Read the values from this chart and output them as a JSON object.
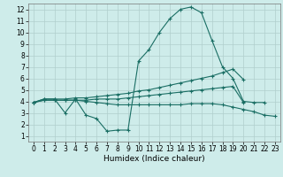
{
  "bg_color": "#ceecea",
  "grid_color": "#b0cfcd",
  "line_color": "#1a6e64",
  "xlabel": "Humidex (Indice chaleur)",
  "xlim_min": -0.5,
  "xlim_max": 23.5,
  "ylim_min": 0.5,
  "ylim_max": 12.5,
  "xticks": [
    0,
    1,
    2,
    3,
    4,
    5,
    6,
    7,
    8,
    9,
    10,
    11,
    12,
    13,
    14,
    15,
    16,
    17,
    18,
    19,
    20,
    21,
    22,
    23
  ],
  "yticks": [
    1,
    2,
    3,
    4,
    5,
    6,
    7,
    8,
    9,
    10,
    11,
    12
  ],
  "line1_x": [
    0,
    1,
    2,
    3,
    4,
    5,
    6,
    7,
    8,
    9,
    10,
    11,
    12,
    13,
    14,
    15,
    16,
    17,
    18,
    19,
    20,
    21,
    22
  ],
  "line1_y": [
    3.9,
    4.2,
    4.2,
    3.0,
    4.2,
    2.8,
    2.5,
    1.4,
    1.5,
    1.5,
    7.5,
    8.5,
    10.0,
    11.2,
    12.0,
    12.2,
    11.7,
    9.3,
    7.0,
    6.0,
    4.0,
    3.9,
    3.9
  ],
  "line2_x": [
    0,
    1,
    2,
    3,
    4,
    5,
    6,
    7,
    8,
    9,
    10,
    11,
    12,
    13,
    14,
    15,
    16,
    17,
    18,
    19,
    20
  ],
  "line2_y": [
    3.9,
    4.2,
    4.2,
    4.2,
    4.3,
    4.3,
    4.4,
    4.5,
    4.6,
    4.7,
    4.9,
    5.0,
    5.2,
    5.4,
    5.6,
    5.8,
    6.0,
    6.2,
    6.5,
    6.8,
    5.9
  ],
  "line3_x": [
    0,
    1,
    2,
    3,
    4,
    5,
    6,
    7,
    8,
    9,
    10,
    11,
    12,
    13,
    14,
    15,
    16,
    17,
    18,
    19,
    20
  ],
  "line3_y": [
    3.9,
    4.1,
    4.1,
    4.1,
    4.1,
    4.1,
    4.2,
    4.2,
    4.2,
    4.3,
    4.4,
    4.5,
    4.6,
    4.7,
    4.8,
    4.9,
    5.0,
    5.1,
    5.2,
    5.3,
    3.9
  ],
  "line4_x": [
    0,
    1,
    2,
    3,
    4,
    5,
    6,
    7,
    8,
    9,
    10,
    11,
    12,
    13,
    14,
    15,
    16,
    17,
    18,
    19,
    20,
    21,
    22,
    23
  ],
  "line4_y": [
    3.9,
    4.1,
    4.1,
    4.1,
    4.1,
    4.0,
    3.9,
    3.8,
    3.7,
    3.7,
    3.7,
    3.7,
    3.7,
    3.7,
    3.7,
    3.8,
    3.8,
    3.8,
    3.7,
    3.5,
    3.3,
    3.1,
    2.8,
    2.7
  ],
  "tick_fontsize": 5.5,
  "xlabel_fontsize": 6.5
}
